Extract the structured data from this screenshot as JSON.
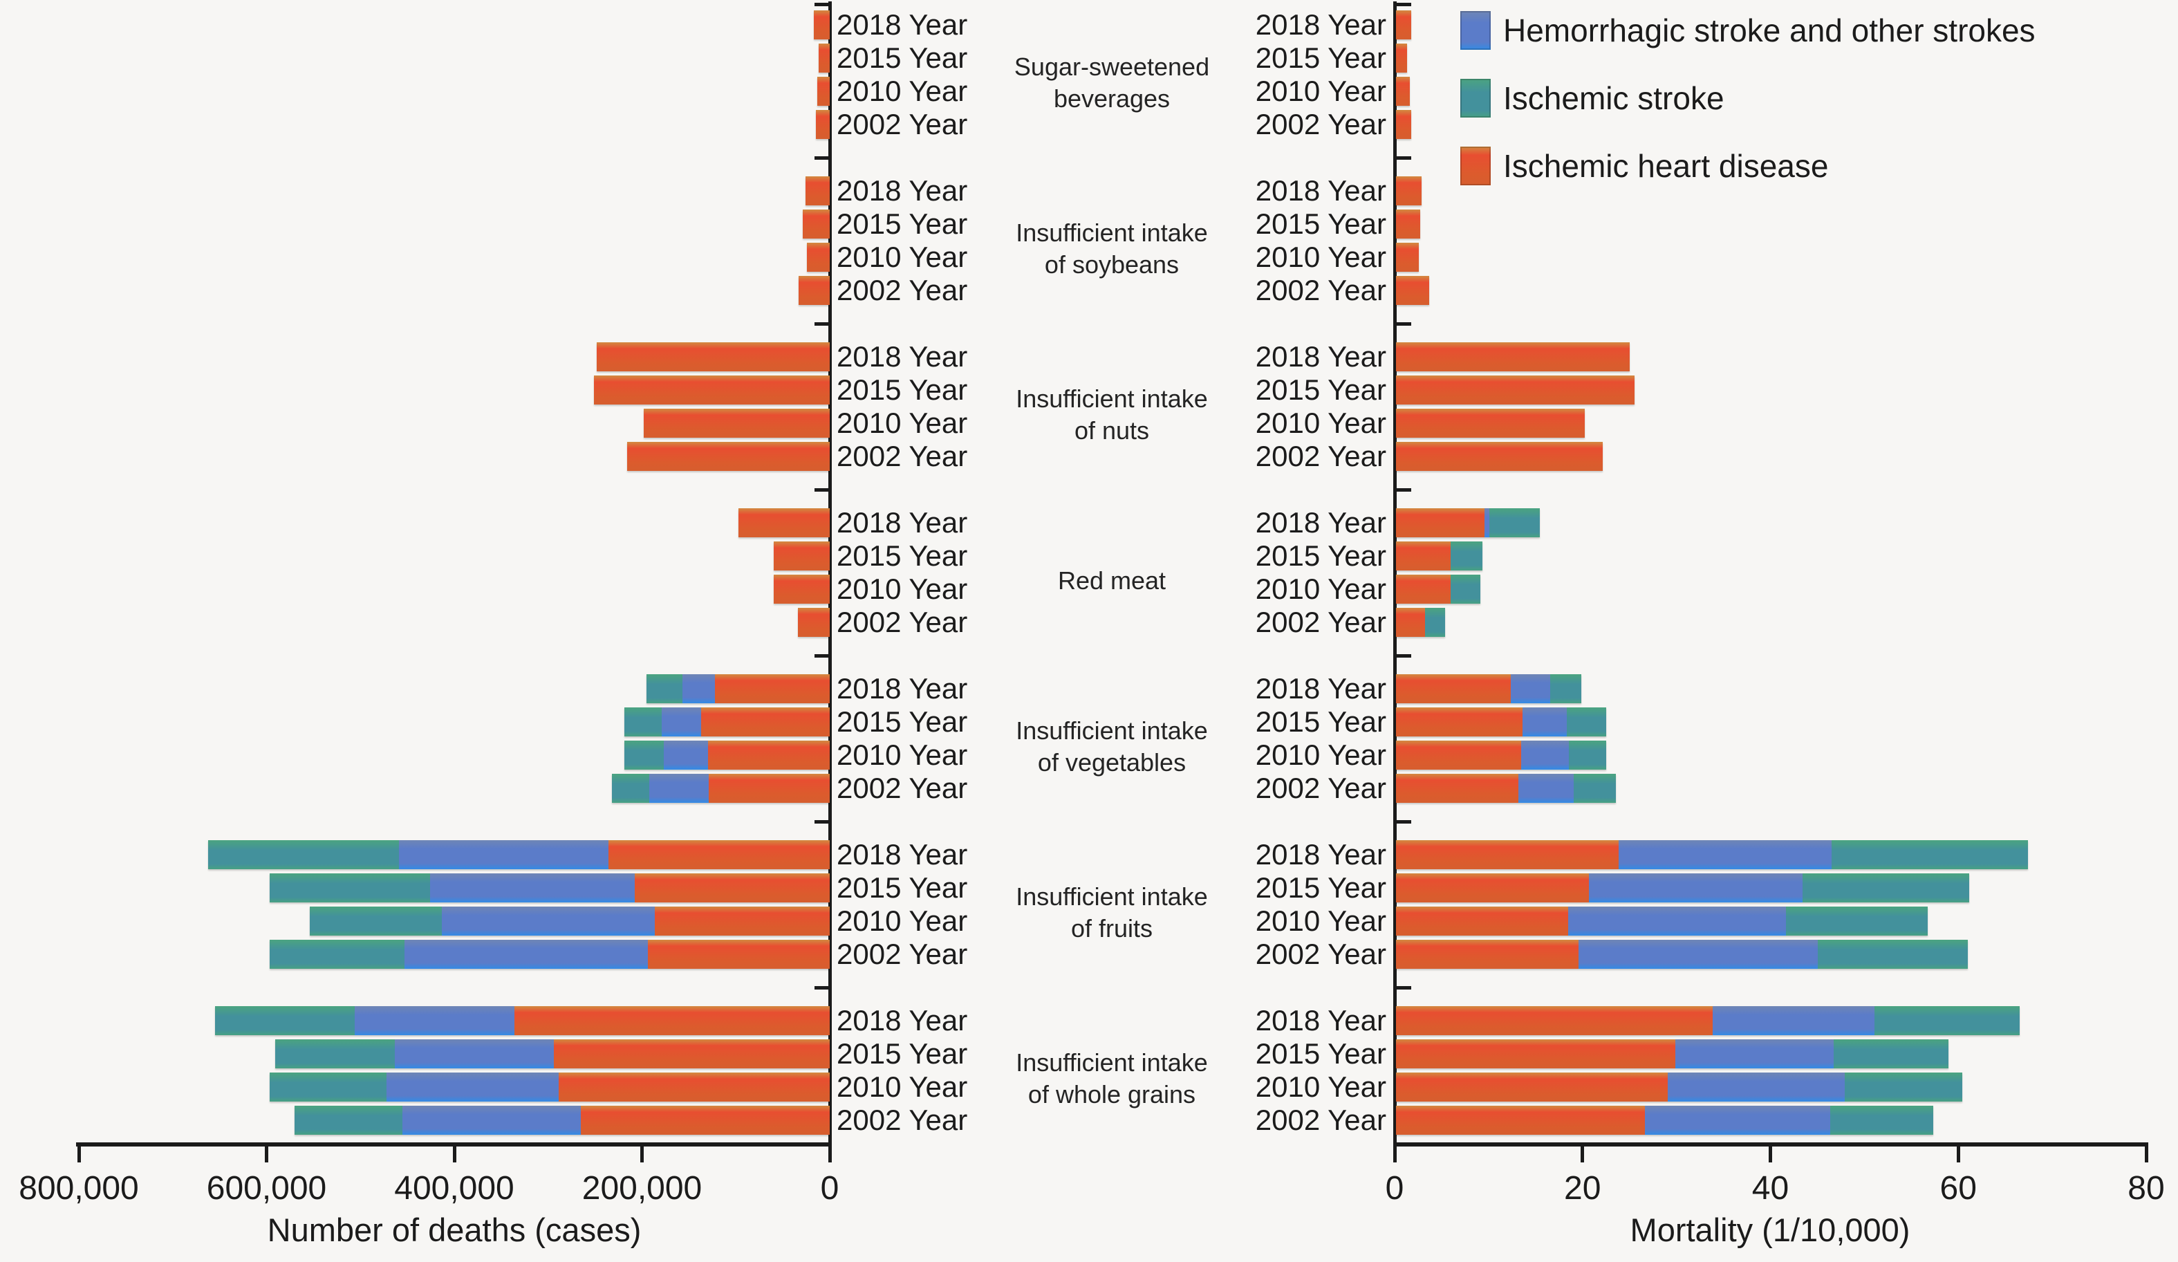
{
  "legend": {
    "items": [
      {
        "key": "hemorrhagic",
        "label": "Hemorrhagic stroke and other strokes",
        "color": "#5B7DC8"
      },
      {
        "key": "ischemic_stroke",
        "label": "Ischemic stroke",
        "color": "#41939B"
      },
      {
        "key": "ihd",
        "label": "Ischemic heart disease",
        "color": "#DC5B2D"
      }
    ]
  },
  "left_axis": {
    "title": "Number of deaths (cases)",
    "ticks": [
      {
        "label": "800,000",
        "value": 800000
      },
      {
        "label": "600,000",
        "value": 600000
      },
      {
        "label": "400,000",
        "value": 400000
      },
      {
        "label": "200,000",
        "value": 200000
      },
      {
        "label": "0",
        "value": 0
      }
    ]
  },
  "right_axis": {
    "title": "Mortality (1/10,000)",
    "ticks": [
      {
        "label": "0",
        "value": 0
      },
      {
        "label": "20",
        "value": 20
      },
      {
        "label": "40",
        "value": 40
      },
      {
        "label": "60",
        "value": 60
      },
      {
        "label": "80",
        "value": 80
      }
    ]
  },
  "chart_data": {
    "type": "bar",
    "variant": "bidirectional-horizontal-stacked",
    "left_metric": "Number of deaths (cases)",
    "right_metric": "Mortality (1/10,000)",
    "left_axis_range": [
      800000,
      0
    ],
    "right_axis_range": [
      0,
      80
    ],
    "grid": false,
    "legend_position": "top-right",
    "stack_order_from_axis": [
      "ihd",
      "hemorrhagic",
      "ischemic_stroke"
    ],
    "series_names": {
      "hemorrhagic": "Hemorrhagic stroke and other strokes",
      "ischemic_stroke": "Ischemic stroke",
      "ihd": "Ischemic heart disease"
    },
    "colors": {
      "hemorrhagic": "#5B7DC8",
      "ischemic_stroke": "#41939B",
      "ihd": "#DC5B2D"
    },
    "groups": [
      {
        "category": "Sugar-sweetened beverages",
        "category_lines": [
          "Sugar-sweetened",
          "beverages"
        ],
        "rows": [
          {
            "year_label": "2018 Year",
            "deaths": {
              "ihd": 17000,
              "hemorrhagic": 0,
              "ischemic_stroke": 0
            },
            "mortality": {
              "ihd": 1.6,
              "hemorrhagic": 0,
              "ischemic_stroke": 0
            }
          },
          {
            "year_label": "2015 Year",
            "deaths": {
              "ihd": 12000,
              "hemorrhagic": 0,
              "ischemic_stroke": 0
            },
            "mortality": {
              "ihd": 1.2,
              "hemorrhagic": 0,
              "ischemic_stroke": 0
            }
          },
          {
            "year_label": "2010 Year",
            "deaths": {
              "ihd": 13500,
              "hemorrhagic": 0,
              "ischemic_stroke": 0
            },
            "mortality": {
              "ihd": 1.5,
              "hemorrhagic": 0,
              "ischemic_stroke": 0
            }
          },
          {
            "year_label": "2002 Year",
            "deaths": {
              "ihd": 15000,
              "hemorrhagic": 0,
              "ischemic_stroke": 0
            },
            "mortality": {
              "ihd": 1.6,
              "hemorrhagic": 0,
              "ischemic_stroke": 0
            }
          }
        ]
      },
      {
        "category": "Insufficient intake of soybeans",
        "category_lines": [
          "Insufficient intake",
          "of soybeans"
        ],
        "rows": [
          {
            "year_label": "2018 Year",
            "deaths": {
              "ihd": 26000,
              "hemorrhagic": 0,
              "ischemic_stroke": 0
            },
            "mortality": {
              "ihd": 2.7,
              "hemorrhagic": 0,
              "ischemic_stroke": 0
            }
          },
          {
            "year_label": "2015 Year",
            "deaths": {
              "ihd": 29000,
              "hemorrhagic": 0,
              "ischemic_stroke": 0
            },
            "mortality": {
              "ihd": 2.6,
              "hemorrhagic": 0,
              "ischemic_stroke": 0
            }
          },
          {
            "year_label": "2010 Year",
            "deaths": {
              "ihd": 24000,
              "hemorrhagic": 0,
              "ischemic_stroke": 0
            },
            "mortality": {
              "ihd": 2.4,
              "hemorrhagic": 0,
              "ischemic_stroke": 0
            }
          },
          {
            "year_label": "2002 Year",
            "deaths": {
              "ihd": 33000,
              "hemorrhagic": 0,
              "ischemic_stroke": 0
            },
            "mortality": {
              "ihd": 3.5,
              "hemorrhagic": 0,
              "ischemic_stroke": 0
            }
          }
        ]
      },
      {
        "category": "Insufficient intake of nuts",
        "category_lines": [
          "Insufficient intake",
          "of nuts"
        ],
        "rows": [
          {
            "year_label": "2018 Year",
            "deaths": {
              "ihd": 248000,
              "hemorrhagic": 0,
              "ischemic_stroke": 0
            },
            "mortality": {
              "ihd": 24.9,
              "hemorrhagic": 0,
              "ischemic_stroke": 0
            }
          },
          {
            "year_label": "2015 Year",
            "deaths": {
              "ihd": 251000,
              "hemorrhagic": 0,
              "ischemic_stroke": 0
            },
            "mortality": {
              "ihd": 25.4,
              "hemorrhagic": 0,
              "ischemic_stroke": 0
            }
          },
          {
            "year_label": "2010 Year",
            "deaths": {
              "ihd": 198000,
              "hemorrhagic": 0,
              "ischemic_stroke": 0
            },
            "mortality": {
              "ihd": 20.1,
              "hemorrhagic": 0,
              "ischemic_stroke": 0
            }
          },
          {
            "year_label": "2002 Year",
            "deaths": {
              "ihd": 216000,
              "hemorrhagic": 0,
              "ischemic_stroke": 0
            },
            "mortality": {
              "ihd": 22.0,
              "hemorrhagic": 0,
              "ischemic_stroke": 0
            }
          }
        ]
      },
      {
        "category": "Red meat",
        "category_lines": [
          "Red meat"
        ],
        "rows": [
          {
            "year_label": "2018 Year",
            "deaths": {
              "ihd": 97000,
              "hemorrhagic": 0,
              "ischemic_stroke": 0
            },
            "mortality": {
              "ihd": 9.4,
              "hemorrhagic": 0.5,
              "ischemic_stroke": 5.4
            }
          },
          {
            "year_label": "2015 Year",
            "deaths": {
              "ihd": 60000,
              "hemorrhagic": 0,
              "ischemic_stroke": 0
            },
            "mortality": {
              "ihd": 5.8,
              "hemorrhagic": 0,
              "ischemic_stroke": 3.4
            }
          },
          {
            "year_label": "2010 Year",
            "deaths": {
              "ihd": 60000,
              "hemorrhagic": 0,
              "ischemic_stroke": 0
            },
            "mortality": {
              "ihd": 5.8,
              "hemorrhagic": 0,
              "ischemic_stroke": 3.2
            }
          },
          {
            "year_label": "2002 Year",
            "deaths": {
              "ihd": 34000,
              "hemorrhagic": 0,
              "ischemic_stroke": 0
            },
            "mortality": {
              "ihd": 3.1,
              "hemorrhagic": 0,
              "ischemic_stroke": 2.1
            }
          }
        ]
      },
      {
        "category": "Insufficient intake of vegetables",
        "category_lines": [
          "Insufficient intake",
          "of vegetables"
        ],
        "rows": [
          {
            "year_label": "2018 Year",
            "deaths": {
              "ihd": 122000,
              "hemorrhagic": 35000,
              "ischemic_stroke": 38000
            },
            "mortality": {
              "ihd": 12.2,
              "hemorrhagic": 4.2,
              "ischemic_stroke": 3.3
            }
          },
          {
            "year_label": "2015 Year",
            "deaths": {
              "ihd": 137000,
              "hemorrhagic": 42000,
              "ischemic_stroke": 40000
            },
            "mortality": {
              "ihd": 13.5,
              "hemorrhagic": 4.7,
              "ischemic_stroke": 4.2
            }
          },
          {
            "year_label": "2010 Year",
            "deaths": {
              "ihd": 130000,
              "hemorrhagic": 47000,
              "ischemic_stroke": 42000
            },
            "mortality": {
              "ihd": 13.3,
              "hemorrhagic": 5.1,
              "ischemic_stroke": 4.0
            }
          },
          {
            "year_label": "2002 Year",
            "deaths": {
              "ihd": 129000,
              "hemorrhagic": 63000,
              "ischemic_stroke": 40000
            },
            "mortality": {
              "ihd": 13.0,
              "hemorrhagic": 5.9,
              "ischemic_stroke": 4.5
            }
          }
        ]
      },
      {
        "category": "Insufficient intake of fruits",
        "category_lines": [
          "Insufficient intake",
          "of fruits"
        ],
        "rows": [
          {
            "year_label": "2018 Year",
            "deaths": {
              "ihd": 236000,
              "hemorrhagic": 223000,
              "ischemic_stroke": 203000
            },
            "mortality": {
              "ihd": 23.7,
              "hemorrhagic": 22.7,
              "ischemic_stroke": 20.9
            }
          },
          {
            "year_label": "2015 Year",
            "deaths": {
              "ihd": 208000,
              "hemorrhagic": 218000,
              "ischemic_stroke": 171000
            },
            "mortality": {
              "ihd": 20.5,
              "hemorrhagic": 22.8,
              "ischemic_stroke": 17.7
            }
          },
          {
            "year_label": "2010 Year",
            "deaths": {
              "ihd": 186000,
              "hemorrhagic": 227000,
              "ischemic_stroke": 141000
            },
            "mortality": {
              "ihd": 18.3,
              "hemorrhagic": 23.2,
              "ischemic_stroke": 15.1
            }
          },
          {
            "year_label": "2002 Year",
            "deaths": {
              "ihd": 194000,
              "hemorrhagic": 259000,
              "ischemic_stroke": 144000
            },
            "mortality": {
              "ihd": 19.4,
              "hemorrhagic": 25.5,
              "ischemic_stroke": 16.0
            }
          }
        ]
      },
      {
        "category": "Insufficient intake of whole grains",
        "category_lines": [
          "Insufficient intake",
          "of whole grains"
        ],
        "rows": [
          {
            "year_label": "2018 Year",
            "deaths": {
              "ihd": 336000,
              "hemorrhagic": 170000,
              "ischemic_stroke": 149000
            },
            "mortality": {
              "ihd": 33.7,
              "hemorrhagic": 17.2,
              "ischemic_stroke": 15.5
            }
          },
          {
            "year_label": "2015 Year",
            "deaths": {
              "ihd": 294000,
              "hemorrhagic": 169000,
              "ischemic_stroke": 128000
            },
            "mortality": {
              "ihd": 29.7,
              "hemorrhagic": 16.9,
              "ischemic_stroke": 12.2
            }
          },
          {
            "year_label": "2010 Year",
            "deaths": {
              "ihd": 289000,
              "hemorrhagic": 183000,
              "ischemic_stroke": 125000
            },
            "mortality": {
              "ihd": 28.9,
              "hemorrhagic": 18.9,
              "ischemic_stroke": 12.5
            }
          },
          {
            "year_label": "2002 Year",
            "deaths": {
              "ihd": 265000,
              "hemorrhagic": 190000,
              "ischemic_stroke": 115000
            },
            "mortality": {
              "ihd": 26.5,
              "hemorrhagic": 19.7,
              "ischemic_stroke": 11.0
            }
          }
        ]
      }
    ]
  }
}
